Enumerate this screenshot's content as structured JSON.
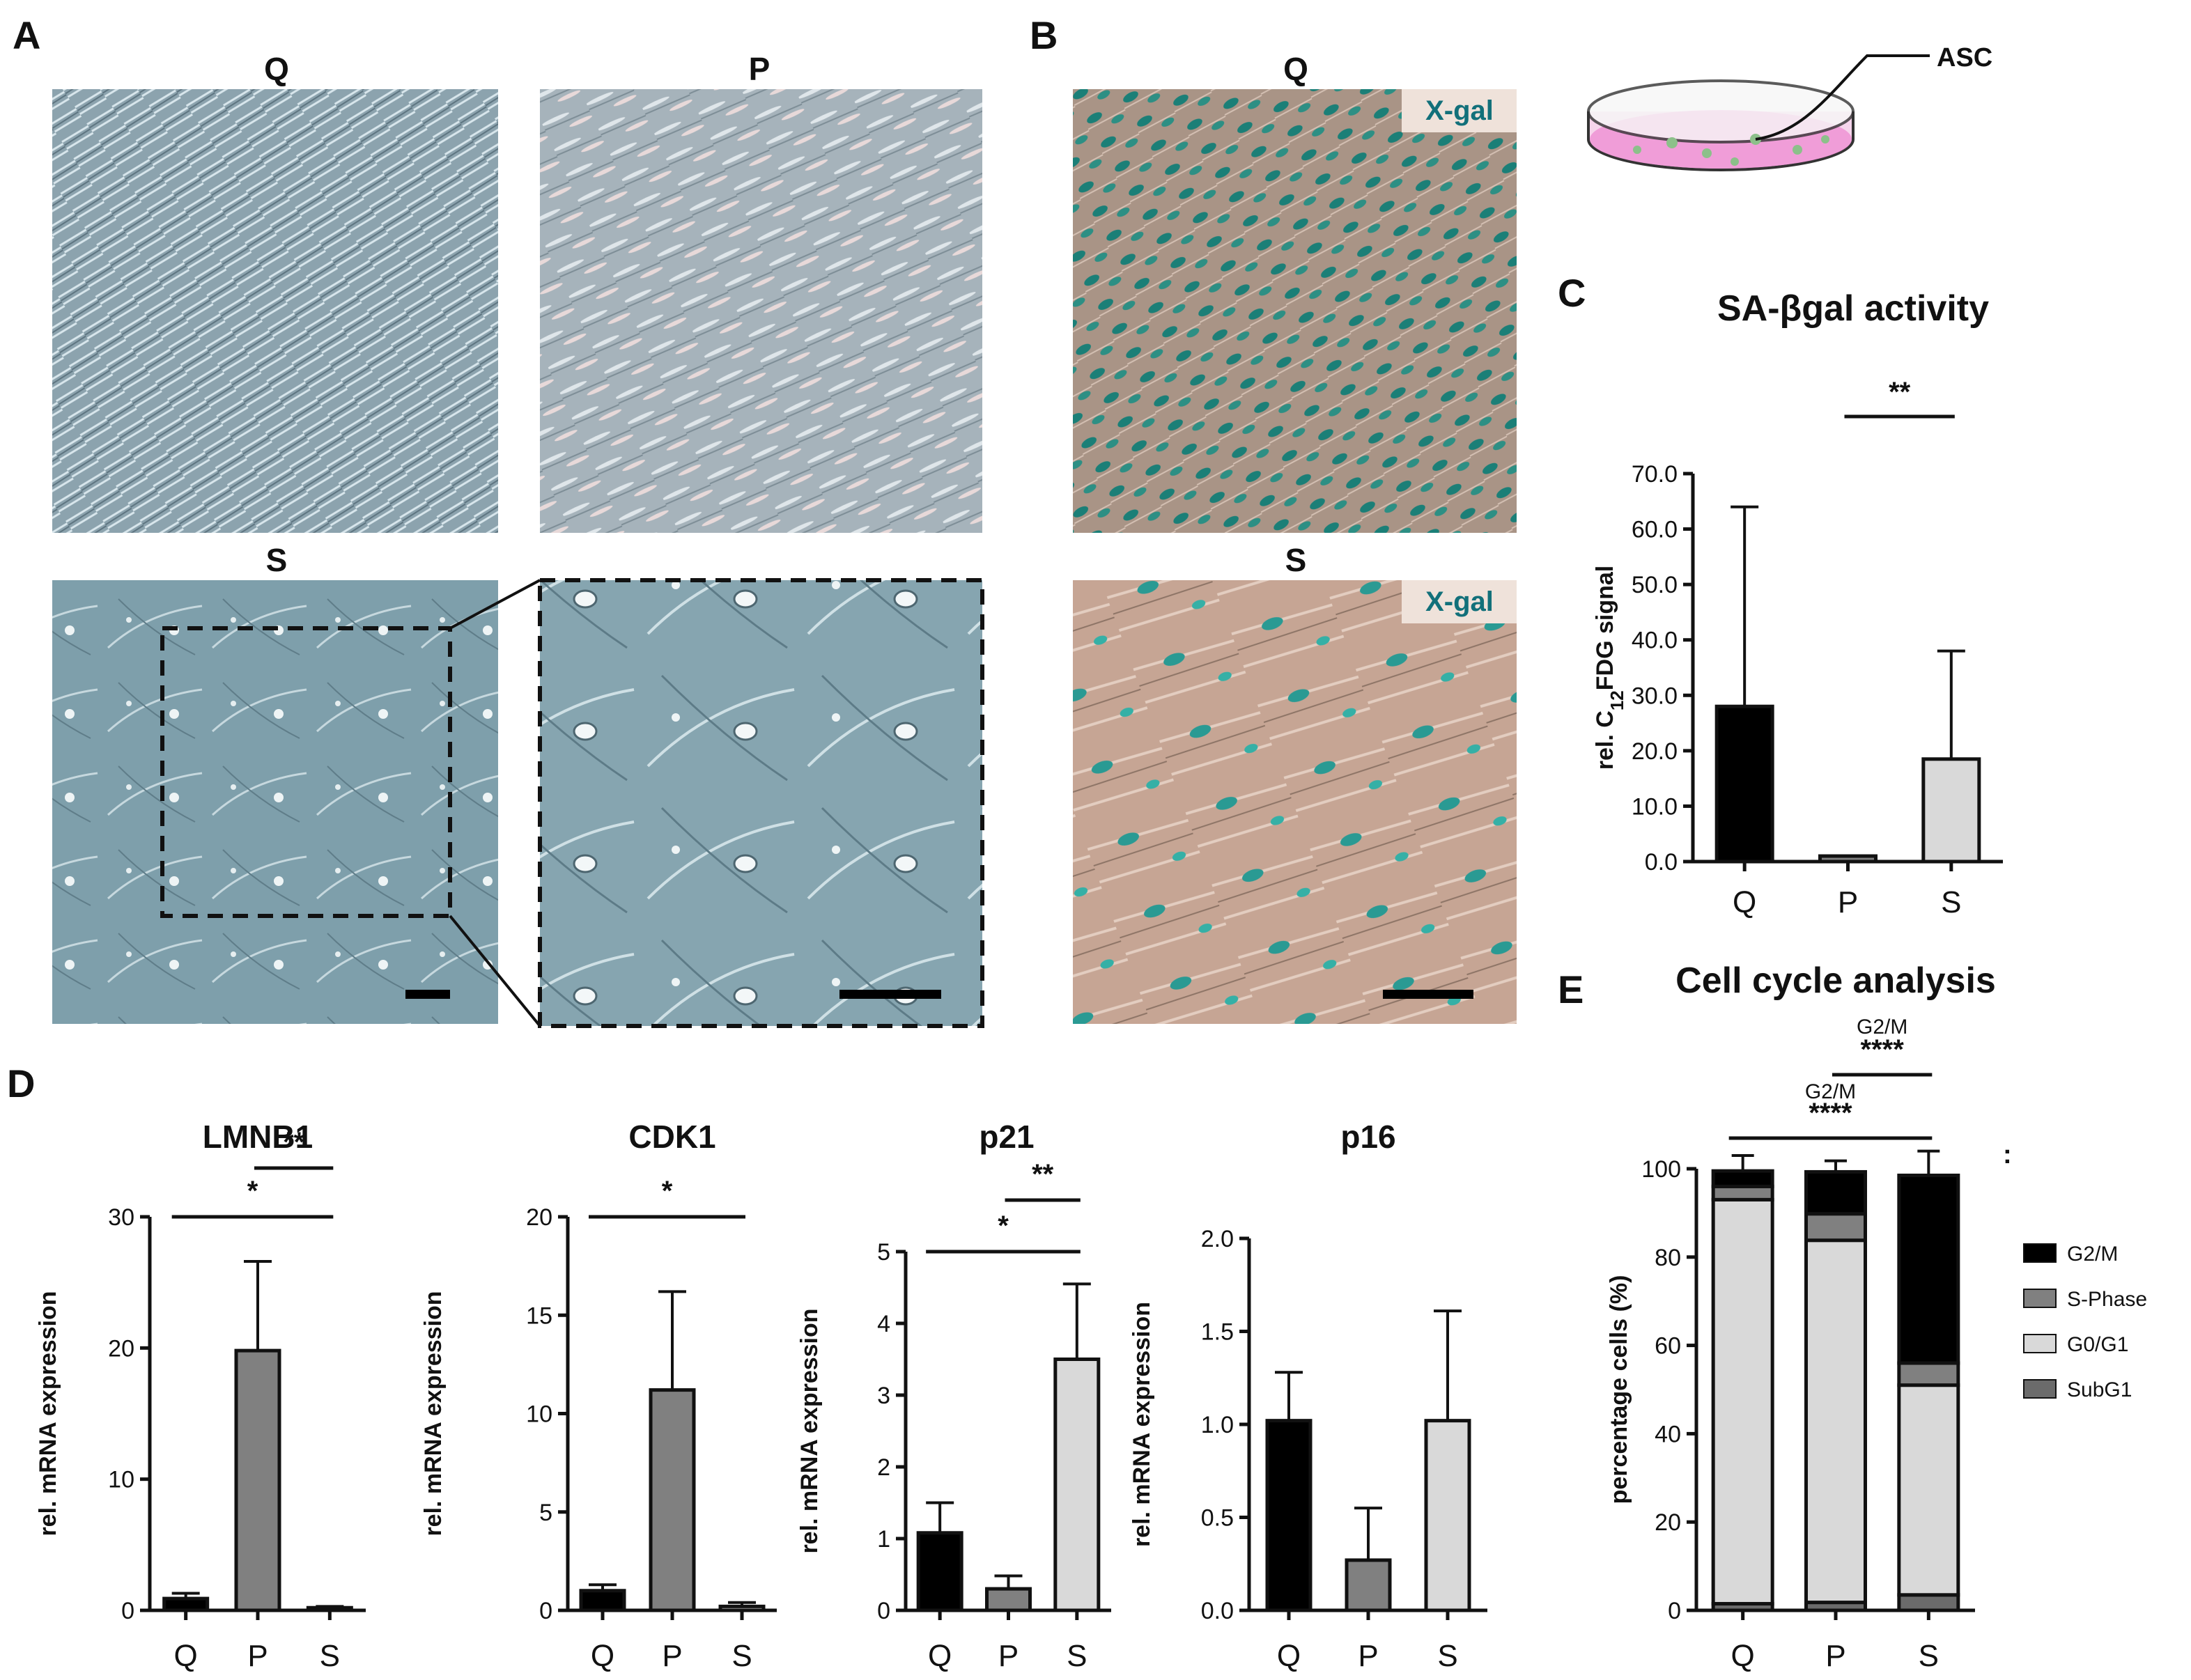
{
  "panels": {
    "A": {
      "label": "A",
      "titles": {
        "q": "Q",
        "p": "P",
        "s": "S"
      }
    },
    "B": {
      "label": "B",
      "titles": {
        "q": "Q",
        "s": "S"
      },
      "stain": "X-gal"
    },
    "dish": {
      "label": "ASC"
    },
    "C": {
      "label": "C"
    },
    "D": {
      "label": "D"
    },
    "E": {
      "label": "E"
    }
  },
  "colors": {
    "Q": "#000000",
    "P": "#808080",
    "S": "#d9d9d9",
    "G2/M": "#000000",
    "S-Phase": "#808080",
    "G0/G1": "#d9d9d9",
    "SubG1": "#6b6b6b",
    "micrograph_bg": "#8ca3ae",
    "xgal_bg": "#c6a594",
    "xgal_stain": "#1b7f77",
    "dish_medium": "#ef8fd3"
  },
  "chart_data": [
    {
      "id": "C",
      "type": "bar",
      "title": "SA-βgal activity",
      "ylabel": "rel. C12FDG signal",
      "ylim": [
        0,
        70
      ],
      "yticks": [
        0,
        10,
        20,
        30,
        40,
        50,
        60,
        70
      ],
      "ytick_labels": [
        "0.0",
        "10.0",
        "20.0",
        "30.0",
        "40.0",
        "50.0",
        "60.0",
        "70.0"
      ],
      "categories": [
        "Q",
        "P",
        "S"
      ],
      "values": [
        28,
        1,
        18.5
      ],
      "errors": [
        36,
        0,
        19.5
      ],
      "significance": [
        {
          "from": "P",
          "to": "S",
          "label": "**"
        }
      ]
    },
    {
      "id": "D1",
      "type": "bar",
      "title": "LMNB1",
      "ylabel": "rel. mRNA expression",
      "ylim": [
        0,
        30
      ],
      "yticks": [
        0,
        10,
        20,
        30
      ],
      "ytick_labels": [
        "0",
        "10",
        "20",
        "30"
      ],
      "categories": [
        "Q",
        "P",
        "S"
      ],
      "values": [
        0.9,
        19.8,
        0.2
      ],
      "errors": [
        0.4,
        6.8,
        0.1
      ],
      "significance": [
        {
          "from": "Q",
          "to": "S",
          "label": "*"
        },
        {
          "from": "P",
          "to": "S",
          "label": "**"
        }
      ]
    },
    {
      "id": "D2",
      "type": "bar",
      "title": "CDK1",
      "ylabel": "rel. mRNA expression",
      "ylim": [
        0,
        20
      ],
      "yticks": [
        0,
        5,
        10,
        15,
        20
      ],
      "ytick_labels": [
        "0",
        "5",
        "10",
        "15",
        "20"
      ],
      "categories": [
        "Q",
        "P",
        "S"
      ],
      "values": [
        1.0,
        11.2,
        0.2
      ],
      "errors": [
        0.3,
        5.0,
        0.2
      ],
      "significance": [
        {
          "from": "Q",
          "to": "S",
          "label": "*"
        }
      ]
    },
    {
      "id": "D3",
      "type": "bar",
      "title": "p21",
      "ylabel": "rel. mRNA expression",
      "ylim": [
        0,
        5
      ],
      "yticks": [
        0,
        1,
        2,
        3,
        4,
        5
      ],
      "ytick_labels": [
        "0",
        "1",
        "2",
        "3",
        "4",
        "5"
      ],
      "categories": [
        "Q",
        "P",
        "S"
      ],
      "values": [
        1.08,
        0.3,
        3.5
      ],
      "errors": [
        0.42,
        0.18,
        1.05
      ],
      "significance": [
        {
          "from": "Q",
          "to": "S",
          "label": "*"
        },
        {
          "from": "P",
          "to": "S",
          "label": "**"
        }
      ]
    },
    {
      "id": "D4",
      "type": "bar",
      "title": "p16",
      "ylabel": "rel. mRNA expression",
      "ylim": [
        0,
        2
      ],
      "yticks": [
        0,
        0.5,
        1,
        1.5,
        2
      ],
      "ytick_labels": [
        "0.0",
        "0.5",
        "1.0",
        "1.5",
        "2.0"
      ],
      "categories": [
        "Q",
        "P",
        "S"
      ],
      "values": [
        1.02,
        0.27,
        1.02
      ],
      "errors": [
        0.26,
        0.28,
        0.59
      ],
      "significance": []
    },
    {
      "id": "E",
      "type": "bar",
      "stacked": true,
      "title": "Cell cycle analysis",
      "ylabel": "percentage cells (%)",
      "ylim": [
        0,
        100
      ],
      "yticks": [
        0,
        20,
        40,
        60,
        80,
        100
      ],
      "ytick_labels": [
        "0",
        "20",
        "40",
        "60",
        "80",
        "100"
      ],
      "categories": [
        "Q",
        "P",
        "S"
      ],
      "series": [
        {
          "name": "SubG1",
          "values": [
            1.5,
            1.8,
            3.5
          ],
          "errors": [
            0.3,
            0.4,
            1.5
          ]
        },
        {
          "name": "G0/G1",
          "values": [
            91.5,
            82,
            47.5
          ],
          "errors": [
            3,
            3,
            4
          ]
        },
        {
          "name": "S-Phase",
          "values": [
            3,
            6,
            5
          ],
          "errors": [
            0.8,
            2,
            1
          ]
        },
        {
          "name": "G2/M",
          "values": [
            3.5,
            9.5,
            42.5
          ],
          "errors": [
            3.5,
            2.5,
            5.5
          ]
        }
      ],
      "legend_order": [
        "G2/M",
        "S-Phase",
        "G0/G1",
        "SubG1"
      ],
      "legend": "right",
      "significance": [
        {
          "from": "P",
          "to": "S",
          "label": "****",
          "sublabel": "G2/M"
        },
        {
          "from": "Q",
          "to": "S",
          "label": "****",
          "sublabel": "G2/M"
        }
      ],
      "annotation": ":"
    }
  ]
}
